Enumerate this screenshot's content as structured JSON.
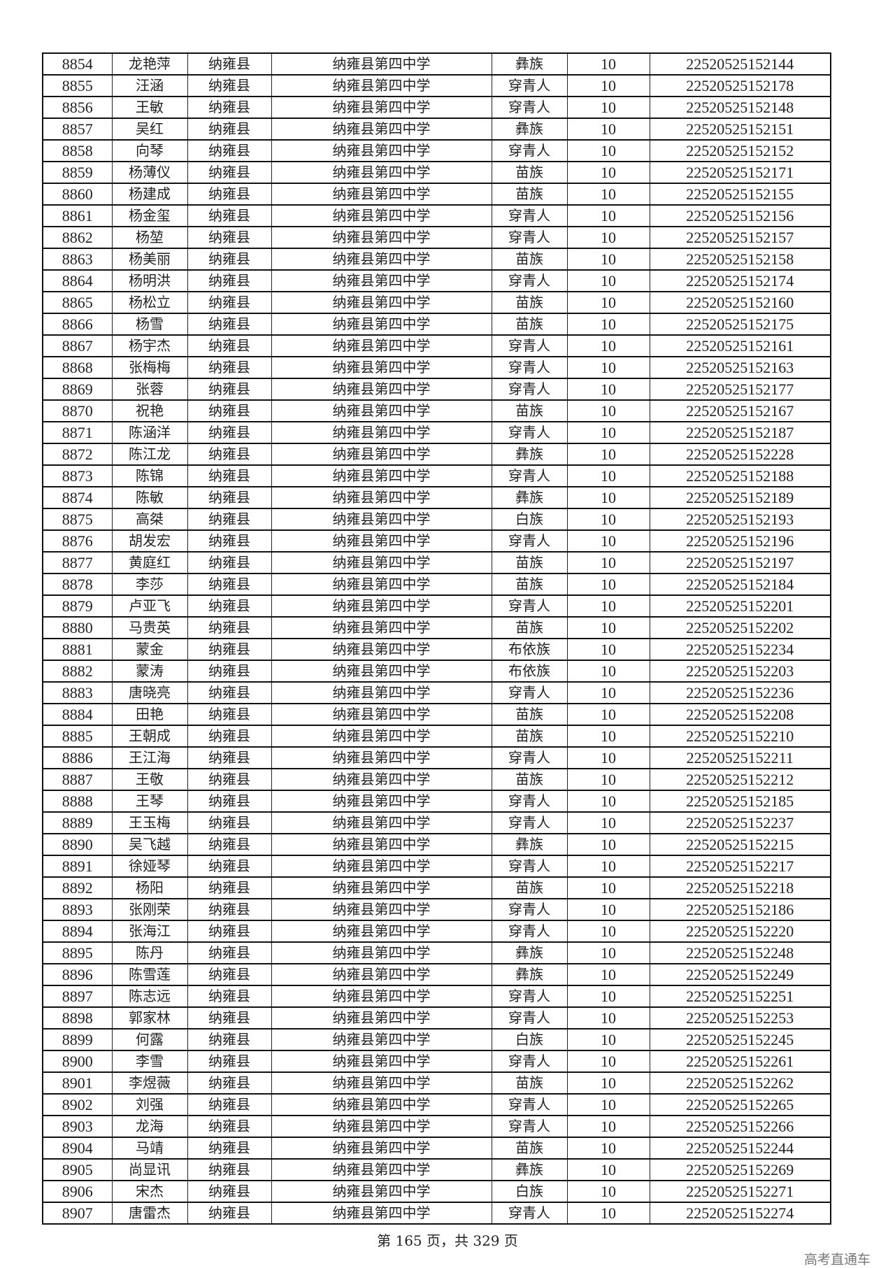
{
  "table": {
    "rows": [
      [
        "8854",
        "龙艳萍",
        "纳雍县",
        "纳雍县第四中学",
        "彝族",
        "10",
        "22520525152144"
      ],
      [
        "8855",
        "汪涵",
        "纳雍县",
        "纳雍县第四中学",
        "穿青人",
        "10",
        "22520525152178"
      ],
      [
        "8856",
        "王敏",
        "纳雍县",
        "纳雍县第四中学",
        "穿青人",
        "10",
        "22520525152148"
      ],
      [
        "8857",
        "吴红",
        "纳雍县",
        "纳雍县第四中学",
        "彝族",
        "10",
        "22520525152151"
      ],
      [
        "8858",
        "向琴",
        "纳雍县",
        "纳雍县第四中学",
        "穿青人",
        "10",
        "22520525152152"
      ],
      [
        "8859",
        "杨薄仪",
        "纳雍县",
        "纳雍县第四中学",
        "苗族",
        "10",
        "22520525152171"
      ],
      [
        "8860",
        "杨建成",
        "纳雍县",
        "纳雍县第四中学",
        "苗族",
        "10",
        "22520525152155"
      ],
      [
        "8861",
        "杨金玺",
        "纳雍县",
        "纳雍县第四中学",
        "穿青人",
        "10",
        "22520525152156"
      ],
      [
        "8862",
        "杨堃",
        "纳雍县",
        "纳雍县第四中学",
        "穿青人",
        "10",
        "22520525152157"
      ],
      [
        "8863",
        "杨美丽",
        "纳雍县",
        "纳雍县第四中学",
        "苗族",
        "10",
        "22520525152158"
      ],
      [
        "8864",
        "杨明洪",
        "纳雍县",
        "纳雍县第四中学",
        "穿青人",
        "10",
        "22520525152174"
      ],
      [
        "8865",
        "杨松立",
        "纳雍县",
        "纳雍县第四中学",
        "苗族",
        "10",
        "22520525152160"
      ],
      [
        "8866",
        "杨雪",
        "纳雍县",
        "纳雍县第四中学",
        "苗族",
        "10",
        "22520525152175"
      ],
      [
        "8867",
        "杨宇杰",
        "纳雍县",
        "纳雍县第四中学",
        "穿青人",
        "10",
        "22520525152161"
      ],
      [
        "8868",
        "张梅梅",
        "纳雍县",
        "纳雍县第四中学",
        "穿青人",
        "10",
        "22520525152163"
      ],
      [
        "8869",
        "张蓉",
        "纳雍县",
        "纳雍县第四中学",
        "穿青人",
        "10",
        "22520525152177"
      ],
      [
        "8870",
        "祝艳",
        "纳雍县",
        "纳雍县第四中学",
        "苗族",
        "10",
        "22520525152167"
      ],
      [
        "8871",
        "陈涵洋",
        "纳雍县",
        "纳雍县第四中学",
        "穿青人",
        "10",
        "22520525152187"
      ],
      [
        "8872",
        "陈江龙",
        "纳雍县",
        "纳雍县第四中学",
        "彝族",
        "10",
        "22520525152228"
      ],
      [
        "8873",
        "陈锦",
        "纳雍县",
        "纳雍县第四中学",
        "穿青人",
        "10",
        "22520525152188"
      ],
      [
        "8874",
        "陈敏",
        "纳雍县",
        "纳雍县第四中学",
        "彝族",
        "10",
        "22520525152189"
      ],
      [
        "8875",
        "高桀",
        "纳雍县",
        "纳雍县第四中学",
        "白族",
        "10",
        "22520525152193"
      ],
      [
        "8876",
        "胡发宏",
        "纳雍县",
        "纳雍县第四中学",
        "穿青人",
        "10",
        "22520525152196"
      ],
      [
        "8877",
        "黄庭红",
        "纳雍县",
        "纳雍县第四中学",
        "苗族",
        "10",
        "22520525152197"
      ],
      [
        "8878",
        "李莎",
        "纳雍县",
        "纳雍县第四中学",
        "苗族",
        "10",
        "22520525152184"
      ],
      [
        "8879",
        "卢亚飞",
        "纳雍县",
        "纳雍县第四中学",
        "穿青人",
        "10",
        "22520525152201"
      ],
      [
        "8880",
        "马贵英",
        "纳雍县",
        "纳雍县第四中学",
        "苗族",
        "10",
        "22520525152202"
      ],
      [
        "8881",
        "蒙金",
        "纳雍县",
        "纳雍县第四中学",
        "布依族",
        "10",
        "22520525152234"
      ],
      [
        "8882",
        "蒙涛",
        "纳雍县",
        "纳雍县第四中学",
        "布依族",
        "10",
        "22520525152203"
      ],
      [
        "8883",
        "唐晓亮",
        "纳雍县",
        "纳雍县第四中学",
        "穿青人",
        "10",
        "22520525152236"
      ],
      [
        "8884",
        "田艳",
        "纳雍县",
        "纳雍县第四中学",
        "苗族",
        "10",
        "22520525152208"
      ],
      [
        "8885",
        "王朝成",
        "纳雍县",
        "纳雍县第四中学",
        "苗族",
        "10",
        "22520525152210"
      ],
      [
        "8886",
        "王江海",
        "纳雍县",
        "纳雍县第四中学",
        "穿青人",
        "10",
        "22520525152211"
      ],
      [
        "8887",
        "王敬",
        "纳雍县",
        "纳雍县第四中学",
        "苗族",
        "10",
        "22520525152212"
      ],
      [
        "8888",
        "王琴",
        "纳雍县",
        "纳雍县第四中学",
        "穿青人",
        "10",
        "22520525152185"
      ],
      [
        "8889",
        "王玉梅",
        "纳雍县",
        "纳雍县第四中学",
        "穿青人",
        "10",
        "22520525152237"
      ],
      [
        "8890",
        "吴飞越",
        "纳雍县",
        "纳雍县第四中学",
        "彝族",
        "10",
        "22520525152215"
      ],
      [
        "8891",
        "徐娅琴",
        "纳雍县",
        "纳雍县第四中学",
        "穿青人",
        "10",
        "22520525152217"
      ],
      [
        "8892",
        "杨阳",
        "纳雍县",
        "纳雍县第四中学",
        "苗族",
        "10",
        "22520525152218"
      ],
      [
        "8893",
        "张刚荣",
        "纳雍县",
        "纳雍县第四中学",
        "穿青人",
        "10",
        "22520525152186"
      ],
      [
        "8894",
        "张海江",
        "纳雍县",
        "纳雍县第四中学",
        "穿青人",
        "10",
        "22520525152220"
      ],
      [
        "8895",
        "陈丹",
        "纳雍县",
        "纳雍县第四中学",
        "彝族",
        "10",
        "22520525152248"
      ],
      [
        "8896",
        "陈雪莲",
        "纳雍县",
        "纳雍县第四中学",
        "彝族",
        "10",
        "22520525152249"
      ],
      [
        "8897",
        "陈志远",
        "纳雍县",
        "纳雍县第四中学",
        "穿青人",
        "10",
        "22520525152251"
      ],
      [
        "8898",
        "郭家林",
        "纳雍县",
        "纳雍县第四中学",
        "穿青人",
        "10",
        "22520525152253"
      ],
      [
        "8899",
        "何露",
        "纳雍县",
        "纳雍县第四中学",
        "白族",
        "10",
        "22520525152245"
      ],
      [
        "8900",
        "李雪",
        "纳雍县",
        "纳雍县第四中学",
        "穿青人",
        "10",
        "22520525152261"
      ],
      [
        "8901",
        "李煜薇",
        "纳雍县",
        "纳雍县第四中学",
        "苗族",
        "10",
        "22520525152262"
      ],
      [
        "8902",
        "刘强",
        "纳雍县",
        "纳雍县第四中学",
        "穿青人",
        "10",
        "22520525152265"
      ],
      [
        "8903",
        "龙海",
        "纳雍县",
        "纳雍县第四中学",
        "穿青人",
        "10",
        "22520525152266"
      ],
      [
        "8904",
        "马靖",
        "纳雍县",
        "纳雍县第四中学",
        "苗族",
        "10",
        "22520525152244"
      ],
      [
        "8905",
        "尚显讯",
        "纳雍县",
        "纳雍县第四中学",
        "彝族",
        "10",
        "22520525152269"
      ],
      [
        "8906",
        "宋杰",
        "纳雍县",
        "纳雍县第四中学",
        "白族",
        "10",
        "22520525152271"
      ],
      [
        "8907",
        "唐雷杰",
        "纳雍县",
        "纳雍县第四中学",
        "穿青人",
        "10",
        "22520525152274"
      ]
    ]
  },
  "footer": {
    "page_text": "第 165 页，共 329 页"
  },
  "watermark": "高考直通车"
}
